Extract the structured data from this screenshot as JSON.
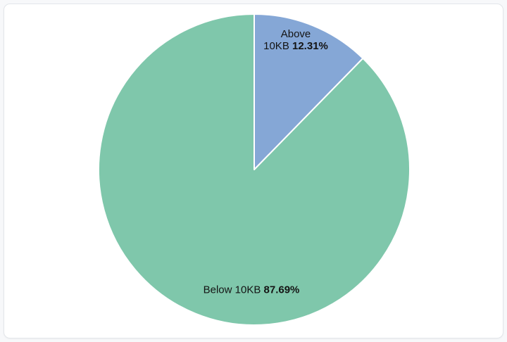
{
  "page": {
    "background_color": "#f7f8fa",
    "card_background": "#ffffff",
    "card_border_color": "#e3e6ea"
  },
  "chart_data": {
    "type": "pie",
    "title": "",
    "legend": "none",
    "label_position": "inside",
    "start_angle_deg": 0,
    "direction": "clockwise",
    "stroke_color": "#ffffff",
    "label_color": "#141414",
    "slices": [
      {
        "name": "Above 10KB",
        "value_pct": 12.31,
        "color": "#85a7d6",
        "label": {
          "line1": "Above",
          "line2_prefix": "10KB ",
          "pct_text": "12.31%"
        }
      },
      {
        "name": "Below 10KB",
        "value_pct": 87.69,
        "color": "#7fc7ab",
        "label": {
          "line1": "",
          "line2_prefix": "Below 10KB ",
          "pct_text": "87.69%"
        }
      }
    ]
  }
}
